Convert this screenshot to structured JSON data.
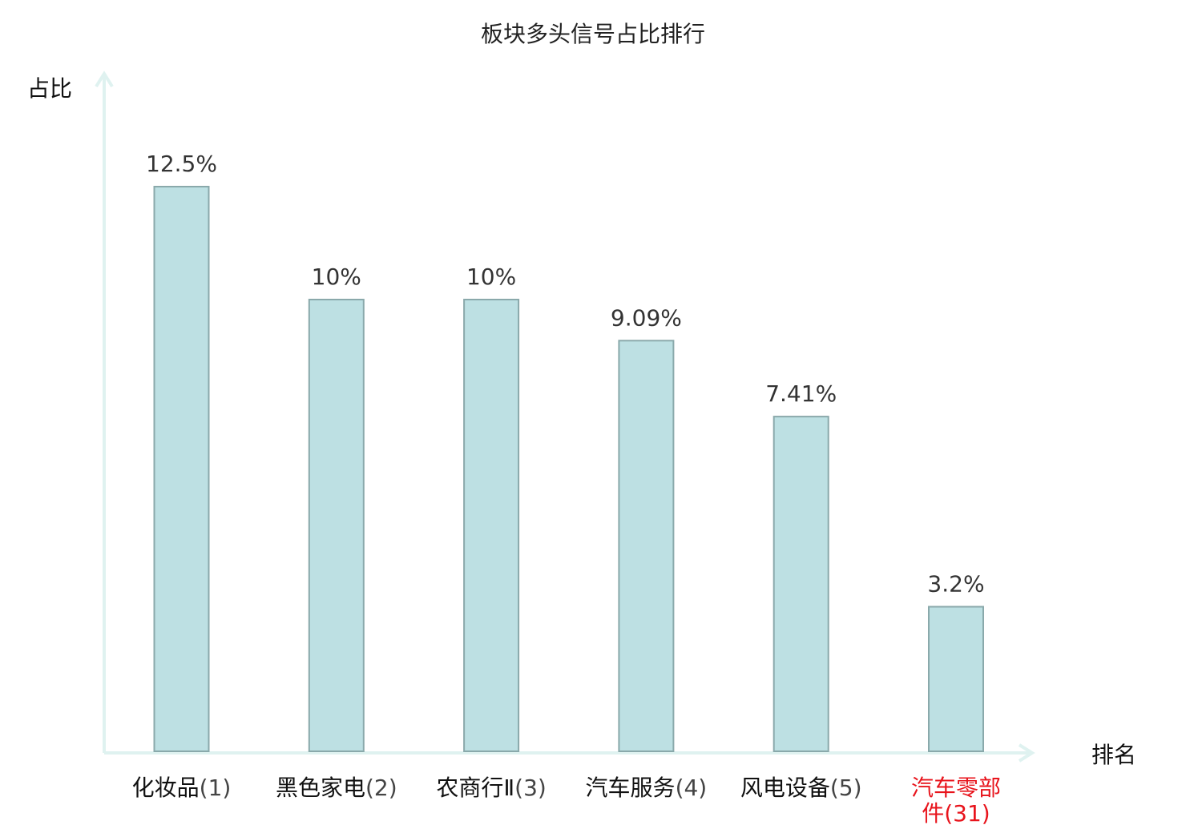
{
  "chart_data": {
    "type": "bar",
    "title": "板块多头信号占比排行",
    "xlabel": "排名",
    "ylabel": "占比",
    "ylim": [
      0,
      15
    ],
    "grid": false,
    "legend": "none",
    "categories": [
      {
        "name": "化妆品",
        "rank": "(1)"
      },
      {
        "name": "黑色家电",
        "rank": "(2)"
      },
      {
        "name": "农商行Ⅱ",
        "rank": "(3)"
      },
      {
        "name": "汽车服务",
        "rank": "(4)"
      },
      {
        "name": "风电设备",
        "rank": "(5)"
      },
      {
        "name": "汽车零部件",
        "rank": "(31)",
        "lines": [
          "汽车零部",
          "件(31)"
        ],
        "highlight": true
      }
    ],
    "values": [
      12.5,
      10,
      10,
      9.09,
      7.41,
      3.2
    ],
    "value_labels": [
      "12.5%",
      "10%",
      "10%",
      "9.09%",
      "7.41%",
      "3.2%"
    ],
    "colors": {
      "bar_fill": "#bde0e3",
      "bar_stroke": "#8aa9ab",
      "axis": "#dff2f0",
      "highlight": "#e8141c"
    }
  }
}
